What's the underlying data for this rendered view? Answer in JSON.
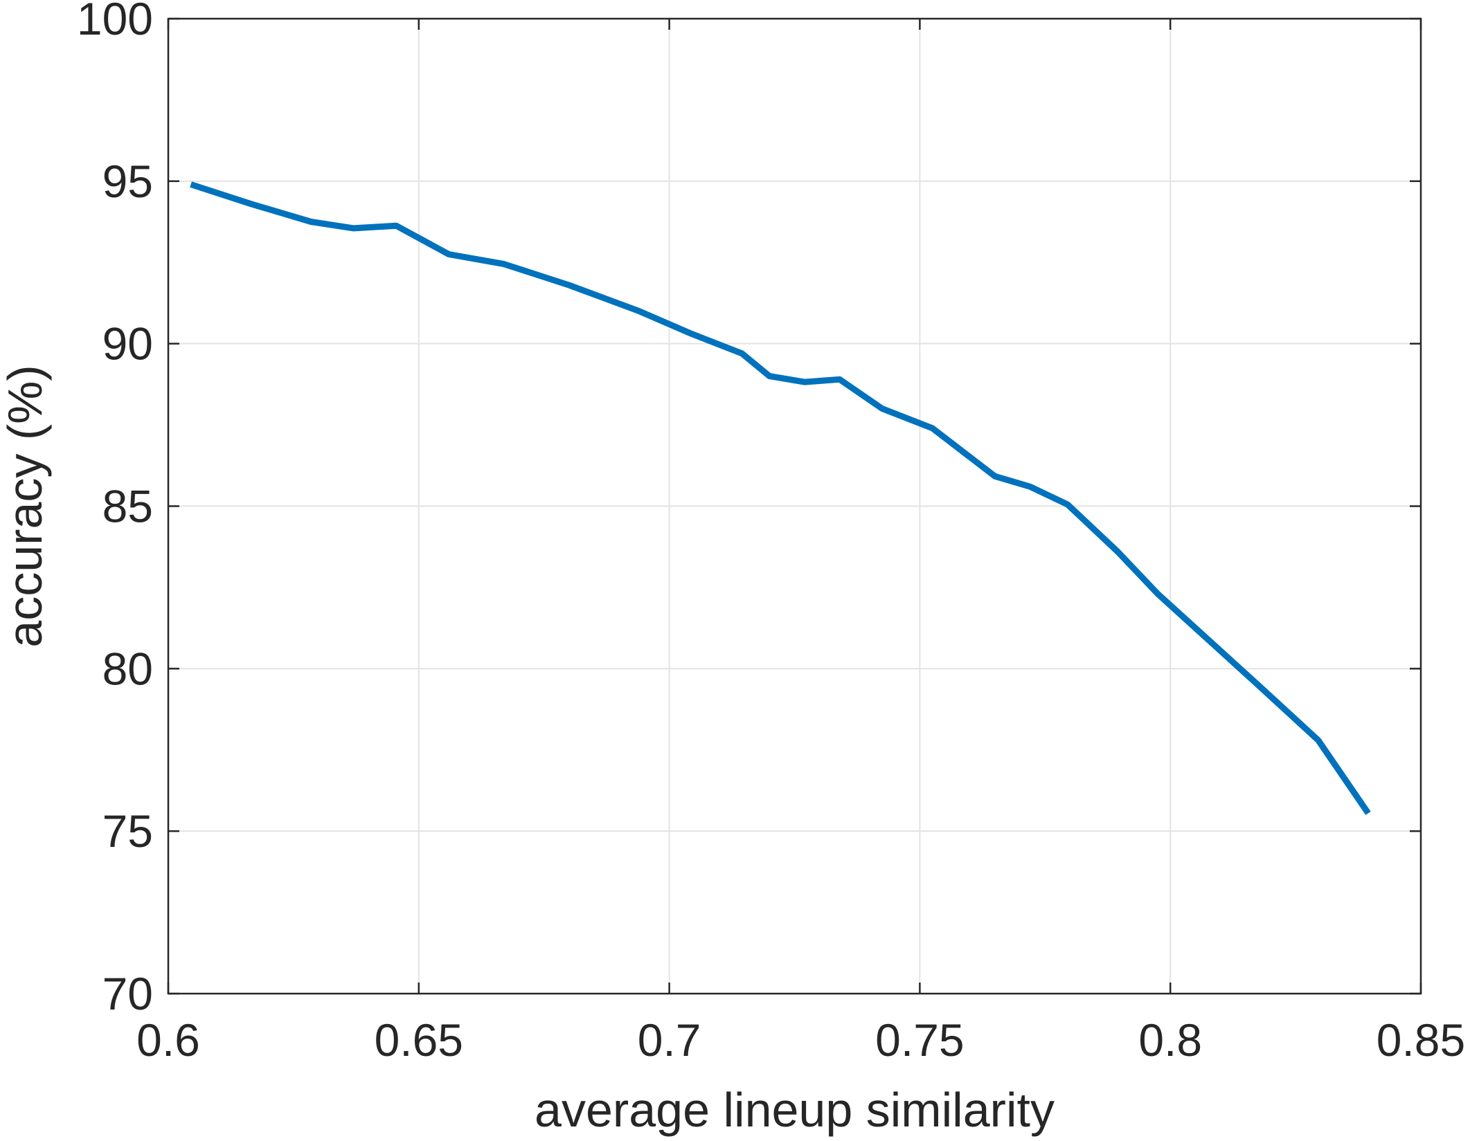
{
  "chart_data": {
    "type": "line",
    "title": "",
    "xlabel": "average lineup similarity",
    "ylabel": "accuracy (%)",
    "xlim": [
      0.6,
      0.85
    ],
    "ylim": [
      70,
      100
    ],
    "xticks": [
      0.6,
      0.65,
      0.7,
      0.75,
      0.8,
      0.85
    ],
    "xtick_labels": [
      "0.6",
      "0.65",
      "0.7",
      "0.75",
      "0.8",
      "0.85"
    ],
    "yticks": [
      70,
      75,
      80,
      85,
      90,
      95,
      100
    ],
    "ytick_labels": [
      "70",
      "75",
      "80",
      "85",
      "90",
      "95",
      "100"
    ],
    "grid": true,
    "series": [
      {
        "color": "#0072BD",
        "x": [
          0.6045,
          0.6165,
          0.6285,
          0.637,
          0.6455,
          0.656,
          0.667,
          0.68,
          0.694,
          0.7045,
          0.7145,
          0.72,
          0.727,
          0.734,
          0.7425,
          0.7525,
          0.765,
          0.772,
          0.7795,
          0.7895,
          0.7975,
          0.8075,
          0.8175,
          0.8295,
          0.8395
        ],
        "y": [
          94.9,
          94.3,
          93.75,
          93.55,
          93.63,
          92.75,
          92.45,
          91.8,
          91.0,
          90.3,
          89.7,
          89.0,
          88.82,
          88.9,
          88.0,
          87.4,
          85.92,
          85.6,
          85.05,
          83.6,
          82.3,
          80.9,
          79.5,
          77.8,
          75.55
        ]
      }
    ]
  }
}
